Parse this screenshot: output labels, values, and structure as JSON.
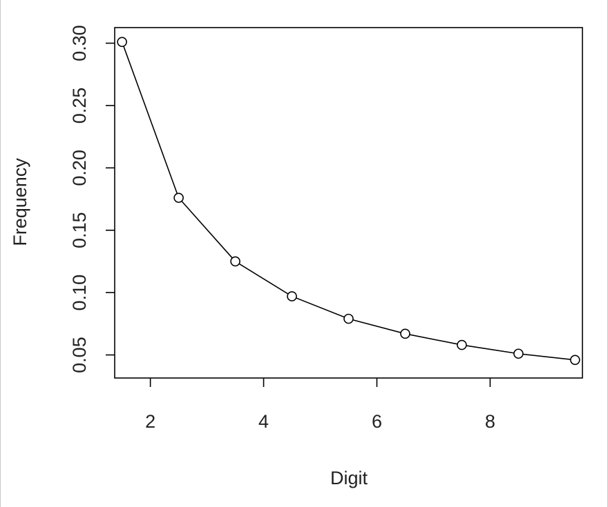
{
  "chart_data": {
    "type": "line",
    "title": "",
    "xlabel": "Digit",
    "ylabel": "Frequency",
    "xlim": [
      1.37,
      9.63
    ],
    "ylim": [
      0.0315,
      0.3125
    ],
    "x_ticks": [
      2,
      4,
      6,
      8
    ],
    "x_tick_labels": [
      "2",
      "4",
      "6",
      "8"
    ],
    "y_ticks": [
      0.05,
      0.1,
      0.15,
      0.2,
      0.25,
      0.3
    ],
    "y_tick_labels": [
      "0.05",
      "0.10",
      "0.15",
      "0.20",
      "0.25",
      "0.30"
    ],
    "grid": false,
    "markers": "open-circle",
    "line_color": "#000000",
    "series": [
      {
        "x": [
          1.5,
          2.5,
          3.5,
          4.5,
          5.5,
          6.5,
          7.5,
          8.5,
          9.5
        ],
        "y": [
          0.301,
          0.176,
          0.125,
          0.097,
          0.079,
          0.067,
          0.058,
          0.051,
          0.046
        ]
      }
    ]
  }
}
